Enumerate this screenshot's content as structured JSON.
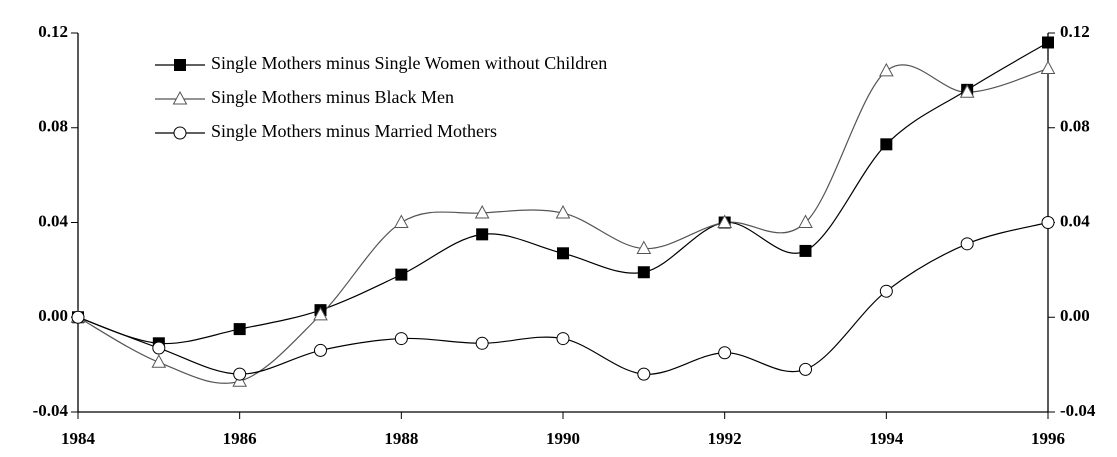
{
  "chart_data": {
    "type": "line",
    "x": [
      1984,
      1985,
      1986,
      1987,
      1988,
      1989,
      1990,
      1991,
      1992,
      1993,
      1994,
      1995,
      1996
    ],
    "series": [
      {
        "name": "Single Mothers minus Single Women without Children",
        "color": "#000000",
        "marker": "square",
        "values": [
          0.0,
          -0.011,
          -0.005,
          0.003,
          0.018,
          0.035,
          0.027,
          0.019,
          0.04,
          0.028,
          0.073,
          0.096,
          0.116
        ]
      },
      {
        "name": "Single Mothers minus Black Men",
        "color": "#555555",
        "marker": "triangle",
        "values": [
          0.0,
          -0.019,
          -0.027,
          0.001,
          0.04,
          0.044,
          0.044,
          0.029,
          0.04,
          0.04,
          0.104,
          0.095,
          0.105
        ]
      },
      {
        "name": "Single Mothers minus Married Mothers",
        "color": "#000000",
        "marker": "circle",
        "values": [
          0.0,
          -0.013,
          -0.024,
          -0.014,
          -0.009,
          -0.011,
          -0.009,
          -0.024,
          -0.015,
          -0.022,
          0.011,
          0.031,
          0.04
        ]
      }
    ],
    "xlim": [
      1984,
      1996
    ],
    "xticks": [
      1984,
      1986,
      1988,
      1990,
      1992,
      1994,
      1996
    ],
    "ylim": [
      -0.04,
      0.12
    ],
    "yticks": [
      -0.04,
      {
        "value": 0,
        "label": "0.00"
      },
      0.04,
      0.08,
      0.12
    ],
    "y2lim": [
      -0.04,
      0.12
    ],
    "y2ticks": [
      -0.04,
      {
        "value": 0,
        "label": "0.00"
      },
      0.04,
      0.08,
      0.12
    ],
    "legend": "upper left",
    "smooth": true
  }
}
